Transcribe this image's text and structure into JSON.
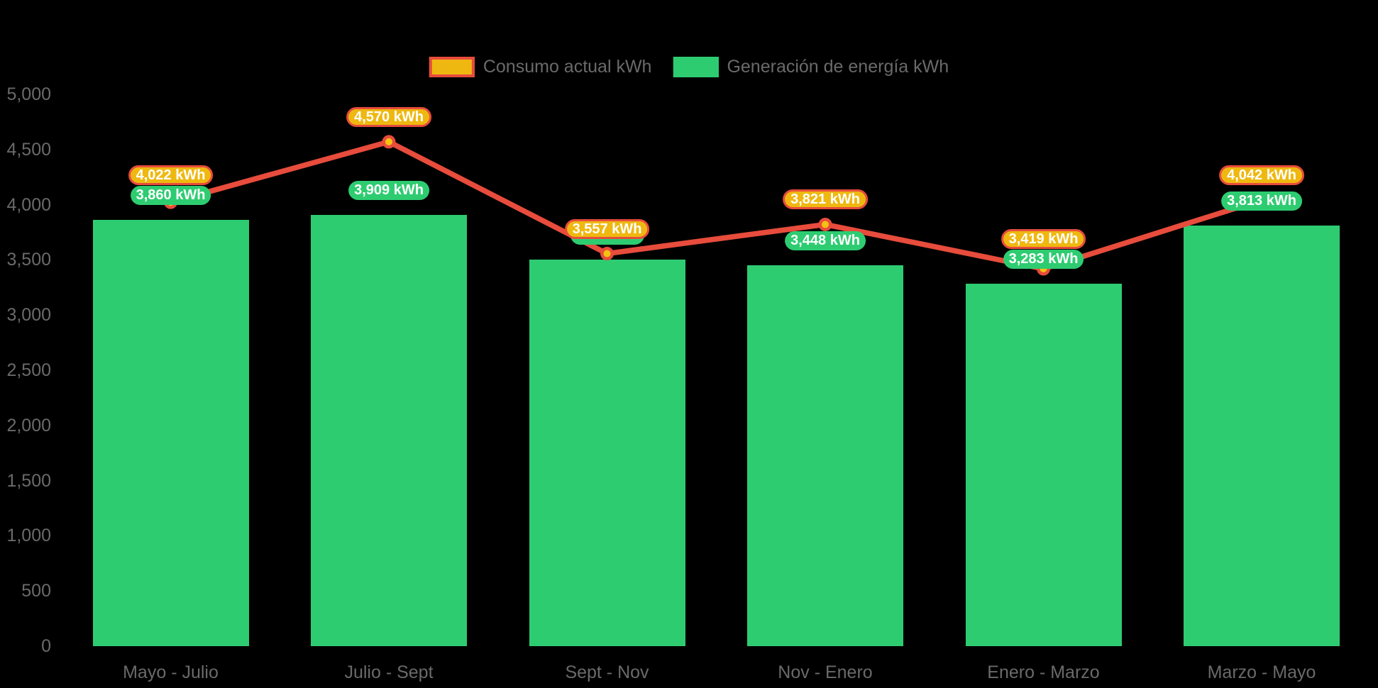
{
  "legend": {
    "items": [
      {
        "id": "consumption",
        "label": "Consumo actual kWh",
        "swatch_fill": "#EFB810",
        "swatch_border": "#E74C3C"
      },
      {
        "id": "generation",
        "label": "Generación de energía kWh",
        "swatch_fill": "#2ECC71",
        "swatch_border": "#2ECC71"
      }
    ]
  },
  "colors": {
    "background": "#000000",
    "axis_text": "#6A6A6A",
    "badge_text": "#FFFFFF",
    "consumption_line": "#E74C3C",
    "consumption_badge_fill": "#EFB810",
    "consumption_badge_border": "#E74C3C",
    "consumption_point_fill": "#F5C211",
    "generation_bar": "#2ECC71",
    "generation_badge_fill": "#2ECC71"
  },
  "chart_data": {
    "type": "mixed",
    "title": "",
    "xlabel": "",
    "ylabel": "",
    "categories": [
      "Mayo - Julio",
      "Julio - Sept",
      "Sept - Nov",
      "Nov - Enero",
      "Enero - Marzo",
      "Marzo - Mayo"
    ],
    "series": [
      {
        "name": "Consumo actual kWh",
        "type": "line",
        "color": "#E74C3C",
        "point_fill": "#F5C211",
        "values": [
          4022,
          4570,
          3557,
          3821,
          3419,
          4042
        ],
        "point_labels": [
          "4,022 kWh",
          "4,570 kWh",
          "3,557 kWh",
          "3,821 kWh",
          "3,419 kWh",
          "4,042 kWh"
        ]
      },
      {
        "name": "Generación de energía kWh",
        "type": "bar",
        "color": "#2ECC71",
        "values": [
          3860,
          3909,
          3500,
          3448,
          3283,
          3813
        ],
        "point_labels": [
          "3,860 kWh",
          "3,909 kWh",
          "",
          "3,448 kWh",
          "3,283 kWh",
          "3,813 kWh"
        ],
        "labels_hidden": [
          false,
          false,
          true,
          false,
          false,
          false
        ]
      }
    ],
    "ylim": [
      0,
      5000
    ],
    "ytick_step": 500,
    "ytick_values": [
      0,
      500,
      1000,
      1500,
      2000,
      2500,
      3000,
      3500,
      4000,
      4500,
      5000
    ],
    "ytick_labels": [
      "0",
      "500",
      "1,000",
      "1,500",
      "2,000",
      "2,500",
      "3,000",
      "3,500",
      "4,000",
      "4,500",
      "5,000"
    ],
    "grid": false,
    "legend_position": "top",
    "background": "#000000"
  }
}
